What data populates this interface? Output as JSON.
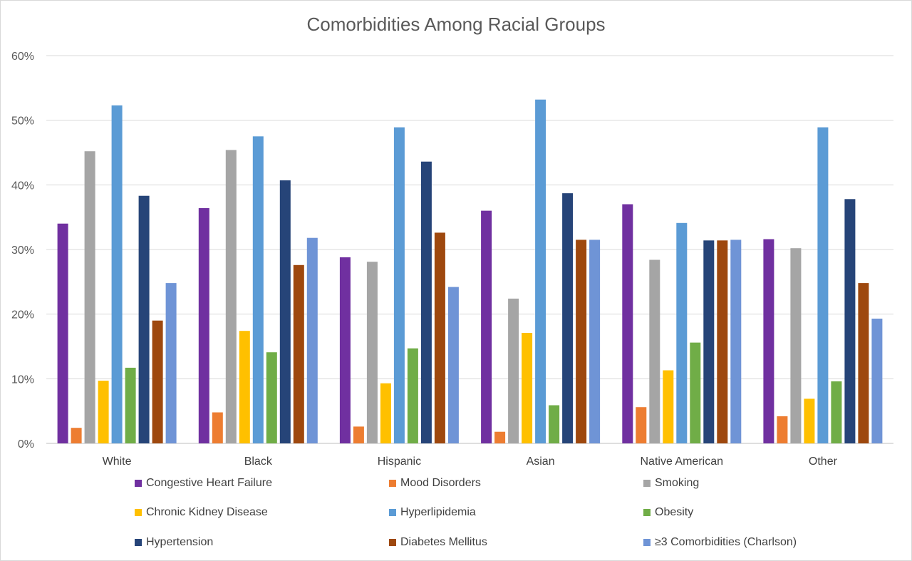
{
  "chart_data": {
    "type": "bar",
    "title": "Comorbidities Among Racial Groups",
    "xlabel": "",
    "ylabel": "",
    "ylim": [
      0,
      60
    ],
    "yticks": [
      "0%",
      "10%",
      "20%",
      "30%",
      "40%",
      "50%",
      "60%"
    ],
    "grid": true,
    "legend_position": "bottom",
    "categories": [
      "White",
      "Black",
      "Hispanic",
      "Asian",
      "Native American",
      "Other"
    ],
    "series": [
      {
        "name": "Congestive Heart Failure",
        "color": "#7030a0",
        "values": [
          34.0,
          36.4,
          28.8,
          36.0,
          37.0,
          31.6
        ]
      },
      {
        "name": "Mood Disorders",
        "color": "#ed7d31",
        "values": [
          2.4,
          4.8,
          2.6,
          1.8,
          5.6,
          4.2
        ]
      },
      {
        "name": "Smoking",
        "color": "#a5a5a5",
        "values": [
          45.2,
          45.4,
          28.1,
          22.4,
          28.4,
          30.2
        ]
      },
      {
        "name": "Chronic Kidney Disease",
        "color": "#ffc000",
        "values": [
          9.7,
          17.4,
          9.3,
          17.1,
          11.3,
          6.9
        ]
      },
      {
        "name": "Hyperlipidemia",
        "color": "#5b9bd5",
        "values": [
          52.3,
          47.5,
          48.9,
          53.2,
          34.1,
          48.9
        ]
      },
      {
        "name": "Obesity",
        "color": "#70ad47",
        "values": [
          11.7,
          14.1,
          14.7,
          5.9,
          15.6,
          9.6
        ]
      },
      {
        "name": "Hypertension",
        "color": "#264478",
        "values": [
          38.3,
          40.7,
          43.6,
          38.7,
          31.4,
          37.8
        ]
      },
      {
        "name": "Diabetes Mellitus",
        "color": "#9e480e",
        "values": [
          19.0,
          27.6,
          32.6,
          31.5,
          31.4,
          24.8
        ]
      },
      {
        "name": "≥3 Comorbidities (Charlson)",
        "color": "#6f94d6",
        "values": [
          24.8,
          31.8,
          24.2,
          31.5,
          31.5,
          19.3
        ]
      }
    ]
  }
}
